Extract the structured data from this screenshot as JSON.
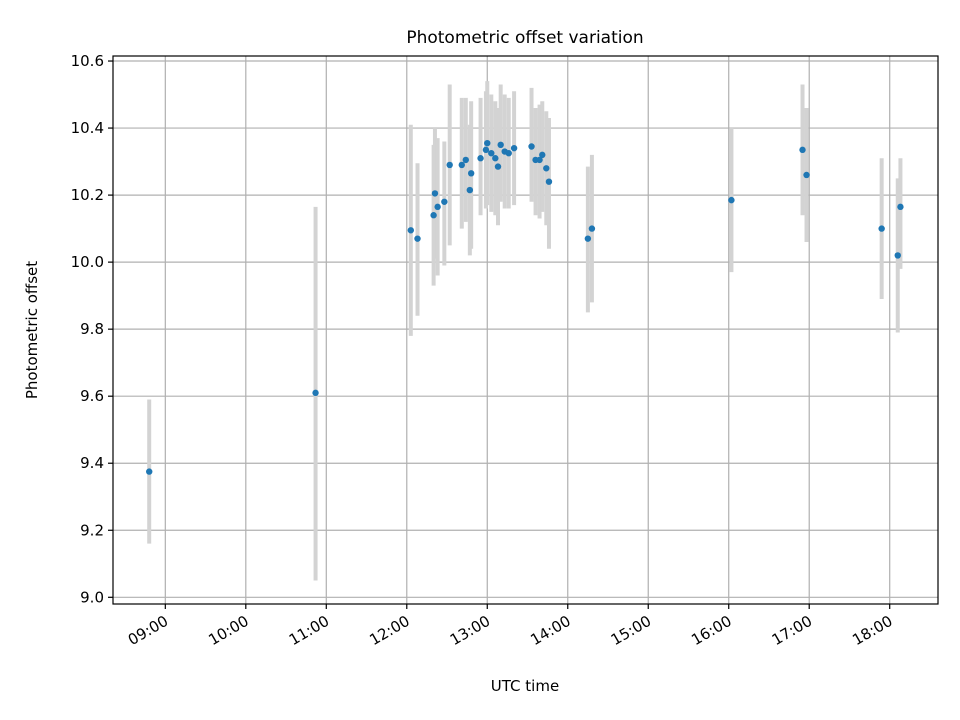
{
  "chart_data": {
    "type": "scatter",
    "title": "Photometric offset variation",
    "xlabel": "UTC time",
    "ylabel": "Photometric offset",
    "xlim": [
      "08:21",
      "18:36"
    ],
    "ylim": [
      8.98,
      10.615
    ],
    "x_ticks": [
      "09:00",
      "10:00",
      "11:00",
      "12:00",
      "13:00",
      "14:00",
      "15:00",
      "16:00",
      "17:00",
      "18:00"
    ],
    "y_ticks": [
      9.0,
      9.2,
      9.4,
      9.6,
      9.8,
      10.0,
      10.2,
      10.4,
      10.6
    ],
    "y_tick_labels": [
      "9.0",
      "9.2",
      "9.4",
      "9.6",
      "9.8",
      "10.0",
      "10.2",
      "10.4",
      "10.6"
    ],
    "grid": true,
    "colors": {
      "point": "#1f77b4",
      "errorbar": "#d3d3d3"
    },
    "series": [
      {
        "points": [
          {
            "x": "08:48",
            "y": 9.375,
            "ylow": 9.16,
            "yhigh": 9.59
          },
          {
            "x": "10:52",
            "y": 9.61,
            "ylow": 9.05,
            "yhigh": 10.165
          },
          {
            "x": "12:03",
            "y": 10.095,
            "ylow": 9.78,
            "yhigh": 10.41
          },
          {
            "x": "12:08",
            "y": 10.07,
            "ylow": 9.84,
            "yhigh": 10.295
          },
          {
            "x": "12:20",
            "y": 10.14,
            "ylow": 9.93,
            "yhigh": 10.35
          },
          {
            "x": "12:21",
            "y": 10.205,
            "ylow": 10.01,
            "yhigh": 10.4
          },
          {
            "x": "12:23",
            "y": 10.165,
            "ylow": 9.96,
            "yhigh": 10.37
          },
          {
            "x": "12:28",
            "y": 10.18,
            "ylow": 9.99,
            "yhigh": 10.36
          },
          {
            "x": "12:32",
            "y": 10.29,
            "ylow": 10.05,
            "yhigh": 10.53
          },
          {
            "x": "12:41",
            "y": 10.29,
            "ylow": 10.1,
            "yhigh": 10.49
          },
          {
            "x": "12:44",
            "y": 10.305,
            "ylow": 10.12,
            "yhigh": 10.49
          },
          {
            "x": "12:47",
            "y": 10.215,
            "ylow": 10.02,
            "yhigh": 10.41
          },
          {
            "x": "12:48",
            "y": 10.265,
            "ylow": 10.04,
            "yhigh": 10.48
          },
          {
            "x": "12:55",
            "y": 10.31,
            "ylow": 10.14,
            "yhigh": 10.49
          },
          {
            "x": "12:59",
            "y": 10.335,
            "ylow": 10.16,
            "yhigh": 10.51
          },
          {
            "x": "13:00",
            "y": 10.355,
            "ylow": 10.17,
            "yhigh": 10.54
          },
          {
            "x": "13:03",
            "y": 10.325,
            "ylow": 10.15,
            "yhigh": 10.5
          },
          {
            "x": "13:06",
            "y": 10.31,
            "ylow": 10.14,
            "yhigh": 10.48
          },
          {
            "x": "13:08",
            "y": 10.285,
            "ylow": 10.11,
            "yhigh": 10.46
          },
          {
            "x": "13:10",
            "y": 10.35,
            "ylow": 10.18,
            "yhigh": 10.53
          },
          {
            "x": "13:13",
            "y": 10.33,
            "ylow": 10.16,
            "yhigh": 10.5
          },
          {
            "x": "13:16",
            "y": 10.325,
            "ylow": 10.16,
            "yhigh": 10.49
          },
          {
            "x": "13:20",
            "y": 10.34,
            "ylow": 10.17,
            "yhigh": 10.51
          },
          {
            "x": "13:33",
            "y": 10.345,
            "ylow": 10.18,
            "yhigh": 10.52
          },
          {
            "x": "13:36",
            "y": 10.305,
            "ylow": 10.14,
            "yhigh": 10.46
          },
          {
            "x": "13:39",
            "y": 10.305,
            "ylow": 10.13,
            "yhigh": 10.47
          },
          {
            "x": "13:41",
            "y": 10.32,
            "ylow": 10.15,
            "yhigh": 10.48
          },
          {
            "x": "13:44",
            "y": 10.28,
            "ylow": 10.11,
            "yhigh": 10.45
          },
          {
            "x": "13:46",
            "y": 10.24,
            "ylow": 10.04,
            "yhigh": 10.43
          },
          {
            "x": "14:15",
            "y": 10.07,
            "ylow": 9.85,
            "yhigh": 10.285
          },
          {
            "x": "14:18",
            "y": 10.1,
            "ylow": 9.88,
            "yhigh": 10.32
          },
          {
            "x": "16:02",
            "y": 10.185,
            "ylow": 9.97,
            "yhigh": 10.4
          },
          {
            "x": "16:55",
            "y": 10.335,
            "ylow": 10.14,
            "yhigh": 10.53
          },
          {
            "x": "16:58",
            "y": 10.26,
            "ylow": 10.06,
            "yhigh": 10.46
          },
          {
            "x": "17:54",
            "y": 10.1,
            "ylow": 9.89,
            "yhigh": 10.31
          },
          {
            "x": "18:06",
            "y": 10.02,
            "ylow": 9.79,
            "yhigh": 10.25
          },
          {
            "x": "18:08",
            "y": 10.165,
            "ylow": 9.98,
            "yhigh": 10.31
          }
        ]
      }
    ]
  }
}
